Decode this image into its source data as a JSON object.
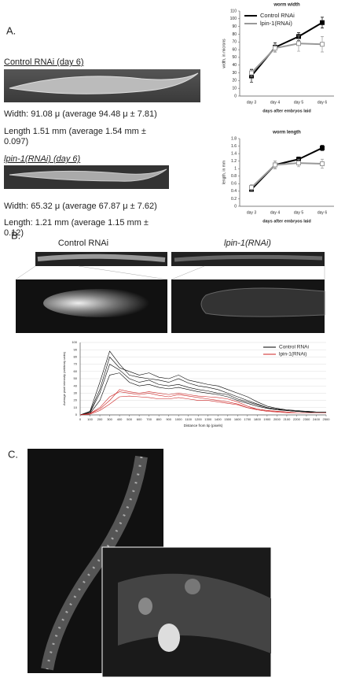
{
  "panel_a": {
    "label": "A.",
    "control_caption": "Control RNAi (day 6)",
    "control_width": "Width: 91.08 μ (average 94.48 μ ± 7.81)",
    "control_length_1": "Length 1.51 mm (average 1.54 mm ±",
    "control_length_2": "0.097)",
    "lpin_caption": "lpin-1(RNAi) (day 6)",
    "lpin_width": "Width: 65.32 μ (average 67.87 μ ± 7.62)",
    "lpin_length_1": "Length: 1.21 mm (average 1.15 mm ±",
    "lpin_length_2": "0.12)"
  },
  "panel_b": {
    "label": "B.",
    "control_label": "Control RNAi",
    "lpin_label": "lpin-1(RNAi)"
  },
  "panel_c": {
    "label": "C."
  },
  "chart_data": [
    {
      "type": "line",
      "title": "worm width",
      "x_label": "days after embryos laid",
      "y_label": "width, in microns",
      "categories": [
        "day 3",
        "day 4",
        "day 5",
        "day 6"
      ],
      "series": [
        {
          "name": "Control RNAi",
          "color": "#000000",
          "values": [
            26,
            63,
            77,
            95
          ],
          "errors": [
            8,
            6,
            5,
            7
          ]
        },
        {
          "name": "lpin-1(RNAi)",
          "color": "#999999",
          "values": [
            30,
            62,
            68,
            67
          ],
          "errors": [
            5,
            5,
            10,
            10
          ]
        }
      ],
      "ylim": [
        0,
        110
      ],
      "yticks": [
        0,
        10,
        20,
        30,
        40,
        50,
        60,
        70,
        80,
        90,
        100,
        110
      ],
      "grid": false,
      "legend": "upper left"
    },
    {
      "type": "line",
      "title": "worm length",
      "x_label": "days after embryos laid",
      "y_label": "length, in mm",
      "categories": [
        "day 3",
        "day 4",
        "day 5",
        "day 6"
      ],
      "series": [
        {
          "name": "Control RNAi",
          "color": "#000000",
          "values": [
            0.45,
            1.1,
            1.25,
            1.55
          ],
          "errors": [
            0.05,
            0.1,
            0.06,
            0.07
          ]
        },
        {
          "name": "lpin-1(RNAi)",
          "color": "#999999",
          "values": [
            0.5,
            1.1,
            1.15,
            1.13
          ],
          "errors": [
            0.08,
            0.1,
            0.1,
            0.12
          ]
        }
      ],
      "ylim": [
        0,
        1.8
      ],
      "yticks": [
        0,
        0.2,
        0.4,
        0.6,
        0.8,
        1,
        1.2,
        1.4,
        1.6,
        1.8
      ],
      "grid": false
    },
    {
      "type": "line",
      "x_label": "Distance from tip (pixels)",
      "y_label": "Average pixel intensity (arbitrary units)",
      "x": [
        0,
        100,
        200,
        300,
        400,
        500,
        600,
        700,
        800,
        900,
        1000,
        1100,
        1200,
        1300,
        1400,
        1500,
        1600,
        1700,
        1800,
        1900,
        2000,
        2100,
        2200,
        2300,
        2400,
        2500
      ],
      "xlim": [
        0,
        2500
      ],
      "xticks": [
        0,
        100,
        200,
        300,
        400,
        500,
        600,
        700,
        800,
        900,
        1000,
        1100,
        1200,
        1300,
        1400,
        1500,
        1600,
        1700,
        1800,
        1900,
        2000,
        2100,
        2200,
        2300,
        2400,
        2500
      ],
      "ylim": [
        0,
        100
      ],
      "yticks": [
        0,
        10,
        20,
        30,
        40,
        50,
        60,
        70,
        80,
        90,
        100
      ],
      "grid": true,
      "legend": "upper right",
      "groups": [
        {
          "name": "Control RNAi",
          "color": "#000000",
          "traces": [
            [
              0,
              5,
              45,
              88,
              70,
              55,
              52,
              50,
              48,
              45,
              50,
              44,
              40,
              38,
              35,
              30,
              25,
              20,
              15,
              10,
              8,
              6,
              5,
              5,
              4,
              4
            ],
            [
              0,
              3,
              30,
              70,
              62,
              50,
              45,
              48,
              42,
              40,
              42,
              38,
              35,
              33,
              30,
              28,
              22,
              18,
              14,
              10,
              8,
              6,
              5,
              4,
              4,
              4
            ],
            [
              0,
              2,
              20,
              55,
              58,
              45,
              40,
              42,
              38,
              36,
              38,
              35,
              32,
              30,
              28,
              25,
              20,
              16,
              12,
              9,
              7,
              6,
              5,
              4,
              3,
              3
            ],
            [
              0,
              4,
              35,
              80,
              65,
              60,
              55,
              58,
              52,
              50,
              55,
              48,
              45,
              42,
              40,
              35,
              30,
              25,
              18,
              12,
              9,
              7,
              6,
              5,
              4,
              4
            ]
          ]
        },
        {
          "name": "lpin-1(RNAi)",
          "color": "#cc2222",
          "traces": [
            [
              0,
              2,
              10,
              25,
              32,
              30,
              28,
              30,
              27,
              25,
              28,
              26,
              24,
              22,
              20,
              18,
              15,
              10,
              8,
              6,
              5,
              4,
              3,
              3,
              3,
              3
            ],
            [
              0,
              2,
              8,
              20,
              35,
              32,
              30,
              32,
              30,
              28,
              30,
              28,
              26,
              25,
              24,
              22,
              18,
              12,
              8,
              6,
              5,
              4,
              3,
              3,
              3,
              3
            ],
            [
              0,
              1,
              6,
              15,
              25,
              26,
              25,
              24,
              22,
              22,
              24,
              22,
              20,
              20,
              18,
              16,
              14,
              10,
              7,
              5,
              4,
              3,
              3,
              3,
              3,
              3
            ]
          ]
        }
      ]
    }
  ]
}
